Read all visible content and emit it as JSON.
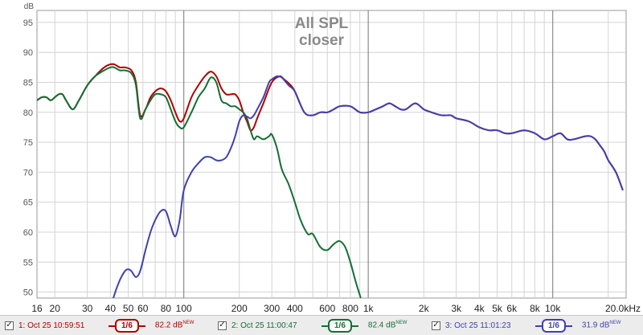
{
  "chart_data": {
    "type": "line",
    "title": "All SPL",
    "subtitle": "closer",
    "ylabel": "dB",
    "xscale": "log",
    "xlim": [
      16,
      25000
    ],
    "ylim": [
      49,
      97
    ],
    "grid": true,
    "yticks": [
      50,
      55,
      60,
      65,
      70,
      75,
      80,
      85,
      90,
      95
    ],
    "xticks": [
      {
        "v": 16,
        "label": "16"
      },
      {
        "v": 20,
        "label": "20"
      },
      {
        "v": 30,
        "label": "30"
      },
      {
        "v": 40,
        "label": "40"
      },
      {
        "v": 50,
        "label": "50"
      },
      {
        "v": 60,
        "label": "60"
      },
      {
        "v": 80,
        "label": "80"
      },
      {
        "v": 100,
        "label": "100"
      },
      {
        "v": 200,
        "label": "200"
      },
      {
        "v": 300,
        "label": "300"
      },
      {
        "v": 400,
        "label": "400"
      },
      {
        "v": 600,
        "label": "600"
      },
      {
        "v": 800,
        "label": "800"
      },
      {
        "v": 1000,
        "label": "1k"
      },
      {
        "v": 2000,
        "label": "2k"
      },
      {
        "v": 3000,
        "label": "3k"
      },
      {
        "v": 4000,
        "label": "4k"
      },
      {
        "v": 5000,
        "label": "5k"
      },
      {
        "v": 6000,
        "label": "6k"
      },
      {
        "v": 8000,
        "label": "8k"
      },
      {
        "v": 10000,
        "label": "10k"
      },
      {
        "v": 20000,
        "label": "20.0kHz"
      }
    ],
    "series": [
      {
        "name": "1: Oct 25 10:59:51",
        "color": "#b00000",
        "x": [
          16,
          17,
          18,
          19,
          20,
          21,
          22,
          23,
          25,
          27,
          30,
          33,
          37,
          40,
          42,
          45,
          48,
          52,
          55,
          58,
          62,
          66,
          70,
          75,
          80,
          85,
          90,
          95,
          100,
          110,
          120,
          130,
          140,
          150,
          160,
          170,
          180,
          190,
          200,
          210,
          220,
          230,
          240,
          250,
          270,
          300,
          330,
          350,
          380,
          400,
          450,
          500,
          550,
          600,
          650,
          700,
          800,
          900,
          1000,
          1100,
          1200,
          1300,
          1400,
          1500,
          1600,
          1800,
          2000,
          2200,
          2500,
          2800,
          3000,
          3500,
          4000,
          4500,
          5000,
          5500,
          6000,
          7000,
          8000,
          9000,
          10000,
          11000,
          12000,
          13000,
          15000,
          16000,
          17000,
          18000,
          19000,
          20000,
          22000,
          24000
        ],
        "y": [
          82,
          82.5,
          82.5,
          82,
          82.5,
          83,
          83,
          82,
          80.5,
          82,
          84.5,
          86,
          87.5,
          88,
          88,
          87.5,
          87.5,
          87,
          85,
          79.5,
          80.5,
          82.5,
          83.5,
          84,
          83.5,
          82,
          80,
          78.5,
          79,
          82.5,
          84.5,
          86,
          86.8,
          86,
          84,
          83,
          83,
          83,
          82,
          80,
          78.5,
          77,
          77.5,
          79,
          81.5,
          85,
          86,
          85.5,
          84.5,
          83.5,
          80,
          79.5,
          80,
          80,
          80.5,
          81,
          81,
          80,
          80,
          80.5,
          81,
          81.5,
          81,
          80.5,
          80.5,
          81.5,
          80.5,
          80,
          79.5,
          79.5,
          79,
          78.5,
          77.5,
          77,
          77,
          76.5,
          76.5,
          77,
          76.5,
          75.5,
          76,
          76.5,
          75.5,
          75.5,
          76,
          76,
          75.5,
          74.5,
          73.5,
          72,
          70,
          67
        ]
      },
      {
        "name": "2: Oct 25 11:00:47",
        "color": "#156e34",
        "x": [
          16,
          17,
          18,
          19,
          20,
          21,
          22,
          23,
          25,
          27,
          30,
          33,
          37,
          40,
          42,
          45,
          48,
          52,
          55,
          58,
          62,
          66,
          70,
          75,
          80,
          85,
          90,
          95,
          100,
          110,
          120,
          130,
          140,
          150,
          160,
          170,
          180,
          190,
          200,
          210,
          220,
          230,
          240,
          250,
          270,
          290,
          300,
          320,
          340,
          370,
          400,
          430,
          470,
          500,
          550,
          600,
          650,
          700,
          750,
          800,
          850,
          900,
          950
        ],
        "y": [
          82,
          82.5,
          82.5,
          82,
          82.5,
          83,
          83,
          82,
          80.5,
          82,
          84.5,
          86,
          87,
          87.5,
          87.5,
          87,
          87,
          86.5,
          84.5,
          79,
          80.5,
          82,
          83,
          83,
          82.5,
          80.5,
          78.5,
          77.5,
          77.5,
          80,
          82.5,
          84,
          85.8,
          85,
          82,
          81.5,
          81,
          81,
          80.5,
          80,
          79,
          77,
          75.5,
          76,
          75.5,
          76,
          76.3,
          74,
          70.5,
          68,
          65,
          62,
          59.7,
          59.7,
          57.5,
          57,
          58,
          58.5,
          57.5,
          55,
          52,
          49.5,
          47
        ]
      },
      {
        "name": "3: Oct 25 11:01:23",
        "color": "#4040b0",
        "x": [
          40,
          42,
          45,
          48,
          50,
          52,
          55,
          58,
          62,
          66,
          70,
          75,
          80,
          85,
          90,
          95,
          100,
          110,
          120,
          130,
          140,
          150,
          160,
          170,
          180,
          190,
          200,
          210,
          220,
          230,
          240,
          250,
          270,
          290,
          300,
          320,
          340,
          370,
          400,
          450,
          500,
          550,
          600,
          650,
          700,
          800,
          900,
          1000,
          1100,
          1200,
          1300,
          1400,
          1500,
          1600,
          1800,
          2000,
          2200,
          2500,
          2800,
          3000,
          3500,
          4000,
          4500,
          5000,
          5500,
          6000,
          7000,
          8000,
          9000,
          10000,
          11000,
          12000,
          13000,
          15000,
          16000,
          17000,
          18000,
          19000,
          20000,
          22000,
          24000
        ],
        "y": [
          47,
          49.5,
          52,
          53.5,
          53.8,
          53.5,
          52.5,
          53.5,
          57,
          60,
          62,
          63.5,
          63.5,
          61,
          59.3,
          62,
          67,
          70,
          71.5,
          72.5,
          72.5,
          72,
          72,
          72.5,
          74,
          76,
          78.5,
          79.5,
          79.3,
          79,
          79.5,
          80.5,
          82.5,
          85,
          85.5,
          86,
          85.8,
          84.5,
          83.5,
          80,
          79.5,
          80,
          80,
          80.5,
          81,
          81,
          80,
          80,
          80.5,
          81,
          81.5,
          81,
          80.5,
          80.5,
          81.5,
          80.5,
          80,
          79.5,
          79.5,
          79,
          78.5,
          77.5,
          77,
          77,
          76.5,
          76.5,
          77,
          76.5,
          75.5,
          76,
          76.5,
          75.5,
          75.5,
          76,
          76,
          75.5,
          74.5,
          73.5,
          72,
          70,
          67
        ]
      }
    ]
  },
  "legend": [
    {
      "checked": "✓",
      "name": "1: Oct 25 10:59:51",
      "smoothing": "1/6",
      "level": "82.2 dB",
      "tag": "NEW",
      "color": "#b00000"
    },
    {
      "checked": "✓",
      "name": "2: Oct 25 11:00:47",
      "smoothing": "1/6",
      "level": "82.4 dB",
      "tag": "NEW",
      "color": "#156e34"
    },
    {
      "checked": "✓",
      "name": "3: Oct 25 11:01:23",
      "smoothing": "1/6",
      "level": "31.9 dB",
      "tag": "NEW",
      "color": "#4040b0"
    }
  ]
}
